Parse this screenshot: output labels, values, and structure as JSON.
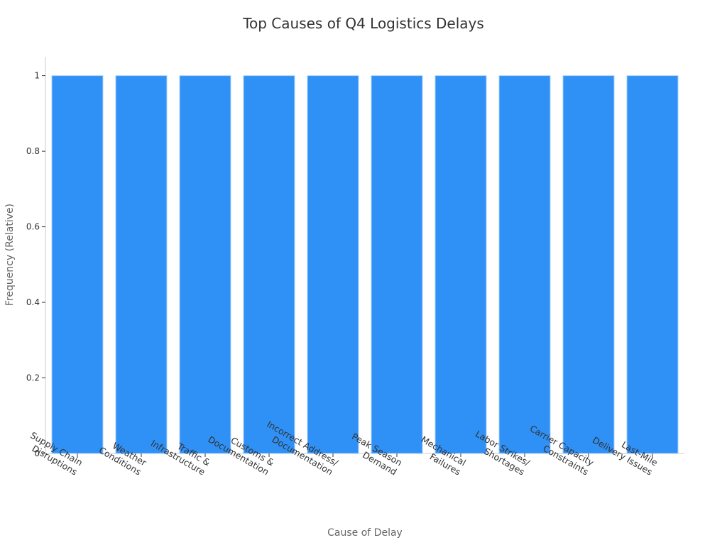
{
  "chart_data": {
    "type": "bar",
    "title": "Top Causes of Q4 Logistics Delays",
    "xlabel": "Cause of Delay",
    "ylabel": "Frequency (Relative)",
    "ylim": [
      0,
      1.05
    ],
    "yticks": [
      0,
      0.2,
      0.4,
      0.6,
      0.8,
      1
    ],
    "ytick_labels": [
      "0",
      "0.2",
      "0.4",
      "0.6",
      "0.8",
      "1"
    ],
    "categories": [
      "Supply Chain Disruptions",
      "Weather Conditions",
      "Traffic & Infrastructure",
      "Customs & Documentation",
      "Incorrect Address/ Documentation",
      "Peak Season Demand",
      "Mechanical Failures",
      "Labor Strikes/ Shortages",
      "Carrier Capacity Constraints",
      "Last-Mile Delivery Issues"
    ],
    "category_label_lines": [
      [
        "Supply Chain",
        "Disruptions"
      ],
      [
        "Weather",
        "Conditions"
      ],
      [
        "Traffic &",
        "Infrastructure"
      ],
      [
        "Customs &",
        "Documentation"
      ],
      [
        "Incorrect Address/",
        "Documentation"
      ],
      [
        "Peak Season",
        "Demand"
      ],
      [
        "Mechanical",
        "Failures"
      ],
      [
        "Labor Strikes/",
        "Shortages"
      ],
      [
        "Carrier Capacity",
        "Constraints"
      ],
      [
        "Last-Mile",
        "Delivery Issues"
      ]
    ],
    "values": [
      1,
      1,
      1,
      1,
      1,
      1,
      1,
      1,
      1,
      1
    ],
    "bar_color": "#2f90f6",
    "grid": false,
    "legend": "none"
  }
}
